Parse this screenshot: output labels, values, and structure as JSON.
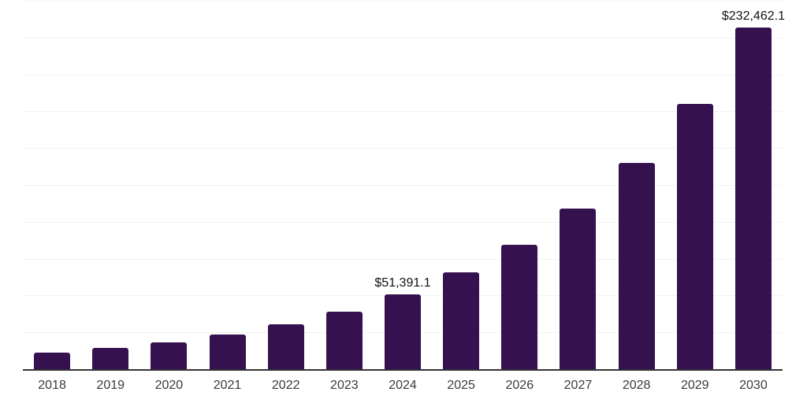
{
  "chart_data": {
    "type": "bar",
    "title": "",
    "categories": [
      "2018",
      "2019",
      "2020",
      "2021",
      "2022",
      "2023",
      "2024",
      "2025",
      "2026",
      "2027",
      "2028",
      "2029",
      "2030"
    ],
    "values": [
      11700,
      14900,
      18700,
      24000,
      31000,
      39500,
      51391.1,
      66100,
      85000,
      109300,
      140600,
      180800,
      232462.1
    ],
    "data_labels": [
      {
        "category": "2024",
        "text": "$51,391.1"
      },
      {
        "category": "2030",
        "text": "$232,462.1"
      }
    ],
    "ylim": [
      0,
      250000
    ],
    "gridline_step": 25000,
    "grid": true,
    "legend_position": "none",
    "xlabel": "",
    "ylabel": "",
    "colors": {
      "bar": "#36114F",
      "gridline": "#F2F2F2",
      "axis_line": "#333333",
      "tick_label": "#3A3A3A",
      "data_label": "#111111",
      "background": "#FFFFFF"
    }
  }
}
